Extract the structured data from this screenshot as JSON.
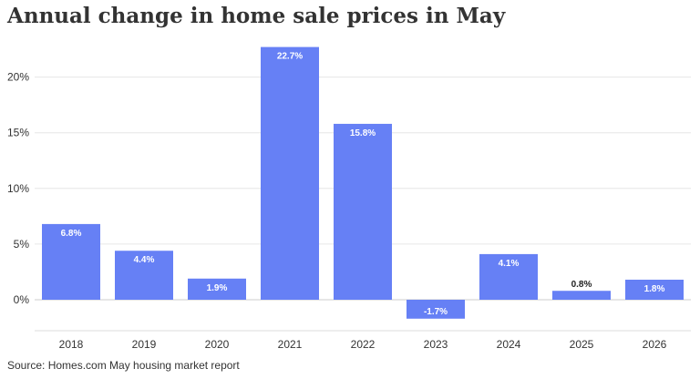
{
  "chart_data": {
    "type": "bar",
    "title": "Annual change in home sale prices in May",
    "source": "Source: Homes.com May housing market report",
    "categories": [
      "2018",
      "2019",
      "2020",
      "2021",
      "2022",
      "2023",
      "2024",
      "2025",
      "2026"
    ],
    "values": [
      6.8,
      4.4,
      1.9,
      22.7,
      15.8,
      -1.7,
      4.1,
      0.8,
      1.8
    ],
    "data_labels": [
      "6.8%",
      "4.4%",
      "1.9%",
      "22.7%",
      "15.8%",
      "-1.7%",
      "4.1%",
      "0.8%",
      "1.8%"
    ],
    "yticks": [
      0,
      5,
      10,
      15,
      20
    ],
    "ytick_labels": [
      "0%",
      "5%",
      "10%",
      "15%",
      "20%"
    ],
    "ylim": [
      -2,
      23
    ],
    "bar_color": "#6680f5",
    "grid": true
  }
}
